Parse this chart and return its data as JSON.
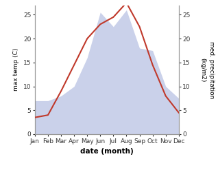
{
  "months": [
    "Jan",
    "Feb",
    "Mar",
    "Apr",
    "May",
    "Jun",
    "Jul",
    "Aug",
    "Sep",
    "Oct",
    "Nov",
    "Dec"
  ],
  "temperature": [
    3.5,
    4.0,
    9.0,
    14.5,
    20.0,
    23.0,
    24.5,
    27.5,
    22.5,
    14.5,
    8.0,
    4.5
  ],
  "precipitation": [
    7.0,
    7.0,
    8.0,
    10.0,
    16.0,
    25.5,
    22.5,
    26.0,
    18.0,
    17.5,
    10.0,
    7.5
  ],
  "temp_color": "#c0392b",
  "precip_color": "#c5cce8",
  "xlabel": "date (month)",
  "ylabel_left": "max temp (C)",
  "ylabel_right": "med. precipitation\n(kg/m2)",
  "ylim_left": [
    0,
    27
  ],
  "ylim_right": [
    0,
    27
  ],
  "yticks_left": [
    0,
    5,
    10,
    15,
    20,
    25
  ],
  "yticks_right": [
    0,
    5,
    10,
    15,
    20,
    25
  ],
  "spine_color": "#999999"
}
